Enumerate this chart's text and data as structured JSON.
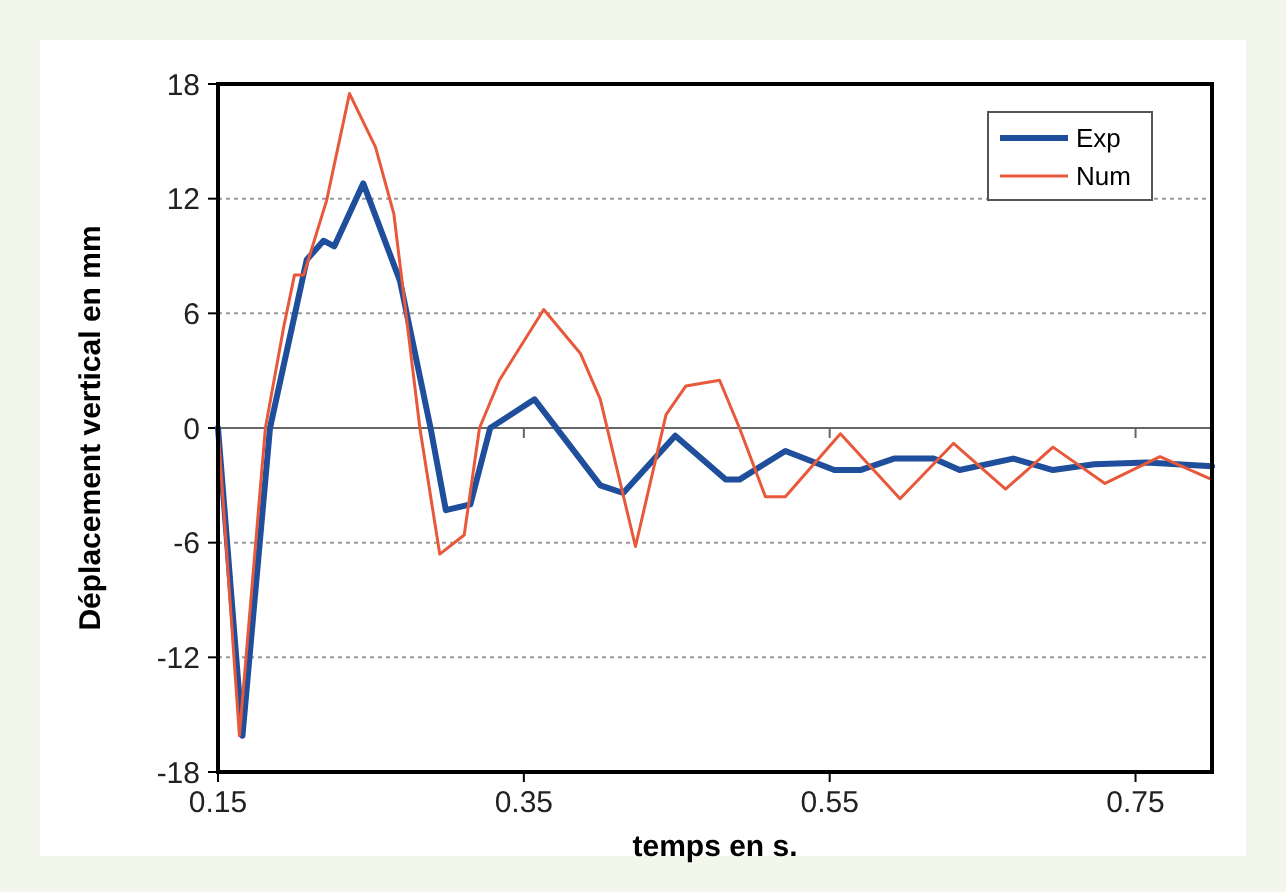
{
  "chart_data": {
    "type": "line",
    "xlabel": "temps en s.",
    "ylabel": "Déplacement vertical en mm",
    "xlim": [
      0.15,
      0.8
    ],
    "xticks": [
      0.15,
      0.35,
      0.55,
      0.75
    ],
    "ylim": [
      -18,
      18
    ],
    "yticks": [
      -18,
      -12,
      -6,
      0,
      6,
      12,
      18
    ],
    "grid": "y",
    "legend": "top right",
    "marker": "none",
    "line_style": "solid",
    "series": [
      {
        "name": "Exp",
        "color": "#1f4e9c",
        "x": [
          0.15,
          0.166,
          0.184,
          0.208,
          0.219,
          0.226,
          0.245,
          0.269,
          0.289,
          0.299,
          0.315,
          0.328,
          0.357,
          0.4,
          0.415,
          0.449,
          0.482,
          0.491,
          0.521,
          0.553,
          0.57,
          0.592,
          0.618,
          0.635,
          0.67,
          0.696,
          0.723,
          0.757,
          0.8
        ],
        "values": [
          0,
          -16.1,
          0,
          8.8,
          9.8,
          9.5,
          12.8,
          7.7,
          0,
          -4.3,
          -4,
          0,
          1.5,
          -3,
          -3.4,
          -0.4,
          -2.7,
          -2.7,
          -1.2,
          -2.2,
          -2.2,
          -1.6,
          -1.6,
          -2.2,
          -1.6,
          -2.2,
          -1.9,
          -1.8,
          -2
        ]
      },
      {
        "name": "Num",
        "color": "#e8583a",
        "x": [
          0.15,
          0.164,
          0.181,
          0.193,
          0.2,
          0.206,
          0.221,
          0.236,
          0.253,
          0.265,
          0.282,
          0.295,
          0.311,
          0.321,
          0.334,
          0.363,
          0.387,
          0.4,
          0.423,
          0.443,
          0.456,
          0.478,
          0.491,
          0.508,
          0.521,
          0.557,
          0.596,
          0.631,
          0.665,
          0.696,
          0.73,
          0.766,
          0.8
        ],
        "values": [
          0,
          -16.1,
          0,
          5.3,
          8,
          8,
          11.9,
          17.5,
          14.7,
          11.2,
          0,
          -6.6,
          -5.6,
          0,
          2.5,
          6.2,
          3.9,
          1.5,
          -6.2,
          0.7,
          2.2,
          2.5,
          0,
          -3.6,
          -3.6,
          -0.3,
          -3.7,
          -0.8,
          -3.2,
          -1,
          -2.9,
          -1.5,
          -2.7
        ]
      }
    ]
  }
}
